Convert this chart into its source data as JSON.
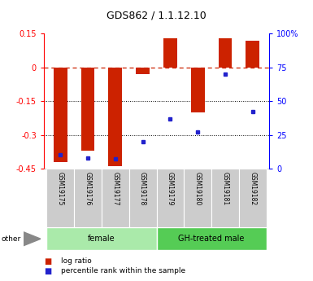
{
  "title": "GDS862 / 1.1.12.10",
  "samples": [
    "GSM19175",
    "GSM19176",
    "GSM19177",
    "GSM19178",
    "GSM19179",
    "GSM19180",
    "GSM19181",
    "GSM19182"
  ],
  "log_ratio": [
    -0.42,
    -0.37,
    -0.44,
    -0.03,
    0.13,
    -0.2,
    0.13,
    0.12
  ],
  "percentile_rank": [
    10,
    8,
    7,
    20,
    37,
    27,
    70,
    42
  ],
  "ylim_left": [
    -0.45,
    0.15
  ],
  "ylim_right": [
    0,
    100
  ],
  "yticks_left": [
    0.15,
    0.0,
    -0.15,
    -0.3,
    -0.45
  ],
  "ytick_labels_left": [
    "0.15",
    "0",
    "-0.15",
    "-0.3",
    "-0.45"
  ],
  "yticks_right": [
    100,
    75,
    50,
    25,
    0
  ],
  "ytick_labels_right": [
    "100%",
    "75",
    "50",
    "25",
    "0"
  ],
  "groups": [
    {
      "label": "female",
      "start": 0,
      "end": 4,
      "color": "#aaeaaa"
    },
    {
      "label": "GH-treated male",
      "start": 4,
      "end": 8,
      "color": "#55cc55"
    }
  ],
  "bar_color": "#cc2200",
  "dot_color": "#2222cc",
  "hline_color": "#cc2200",
  "grid_color": "#000000",
  "sample_box_color": "#cccccc",
  "bar_width": 0.5,
  "legend_labels": [
    "log ratio",
    "percentile rank within the sample"
  ],
  "other_label": "other"
}
